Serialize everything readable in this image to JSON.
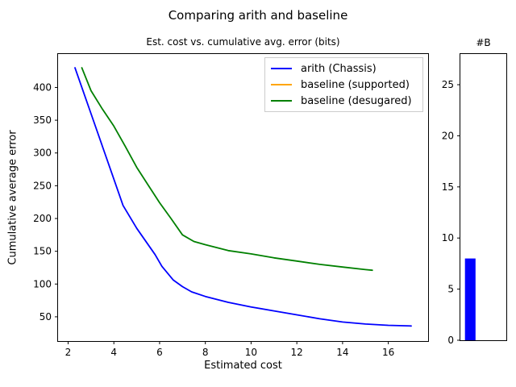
{
  "figure": {
    "suptitle": "Comparing arith and baseline",
    "background_color": "#ffffff"
  },
  "chart_data": [
    {
      "type": "line",
      "title": "Est. cost vs. cumulative avg. error (bits)",
      "xlabel": "Estimated cost",
      "ylabel": "Cumulative average error",
      "xlim": [
        1.56,
        17.74
      ],
      "ylim": [
        13,
        451
      ],
      "xticks": [
        2,
        4,
        6,
        8,
        10,
        12,
        14,
        16
      ],
      "yticks": [
        50,
        100,
        150,
        200,
        250,
        300,
        350,
        400
      ],
      "grid": false,
      "legend_position": "upper right",
      "series": [
        {
          "name": "arith (Chassis)",
          "color": "#0000ff",
          "x": [
            2.3,
            3.0,
            3.9,
            4.4,
            5.0,
            5.8,
            6.1,
            6.6,
            7.0,
            7.4,
            8.0,
            9.0,
            10.0,
            11.0,
            12.0,
            13.0,
            14.0,
            15.0,
            16.0,
            17.0
          ],
          "y": [
            430,
            360,
            270,
            220,
            185,
            145,
            127,
            106,
            96,
            88,
            81,
            72,
            65,
            59,
            53,
            47,
            42,
            39,
            37,
            36
          ]
        },
        {
          "name": "baseline (supported)",
          "color": "#ffa500",
          "x": [],
          "y": []
        },
        {
          "name": "baseline (desugared)",
          "color": "#008000",
          "x": [
            2.6,
            3.0,
            3.5,
            4.0,
            4.5,
            5.0,
            5.5,
            6.0,
            6.5,
            7.0,
            7.5,
            8.0,
            9.0,
            10.0,
            11.0,
            12.0,
            13.0,
            14.0,
            15.0,
            15.3
          ],
          "y": [
            430,
            395,
            367,
            341,
            310,
            278,
            251,
            224,
            200,
            175,
            165,
            160,
            151,
            146,
            140,
            135,
            130,
            126,
            122,
            121
          ]
        }
      ]
    },
    {
      "type": "bar",
      "title": "#B",
      "categories": [
        ""
      ],
      "values": [
        8
      ],
      "bar_color": "#0000ff",
      "ylim": [
        0,
        28
      ],
      "yticks": [
        0,
        5,
        10,
        15,
        20,
        25
      ],
      "grid": false
    }
  ]
}
